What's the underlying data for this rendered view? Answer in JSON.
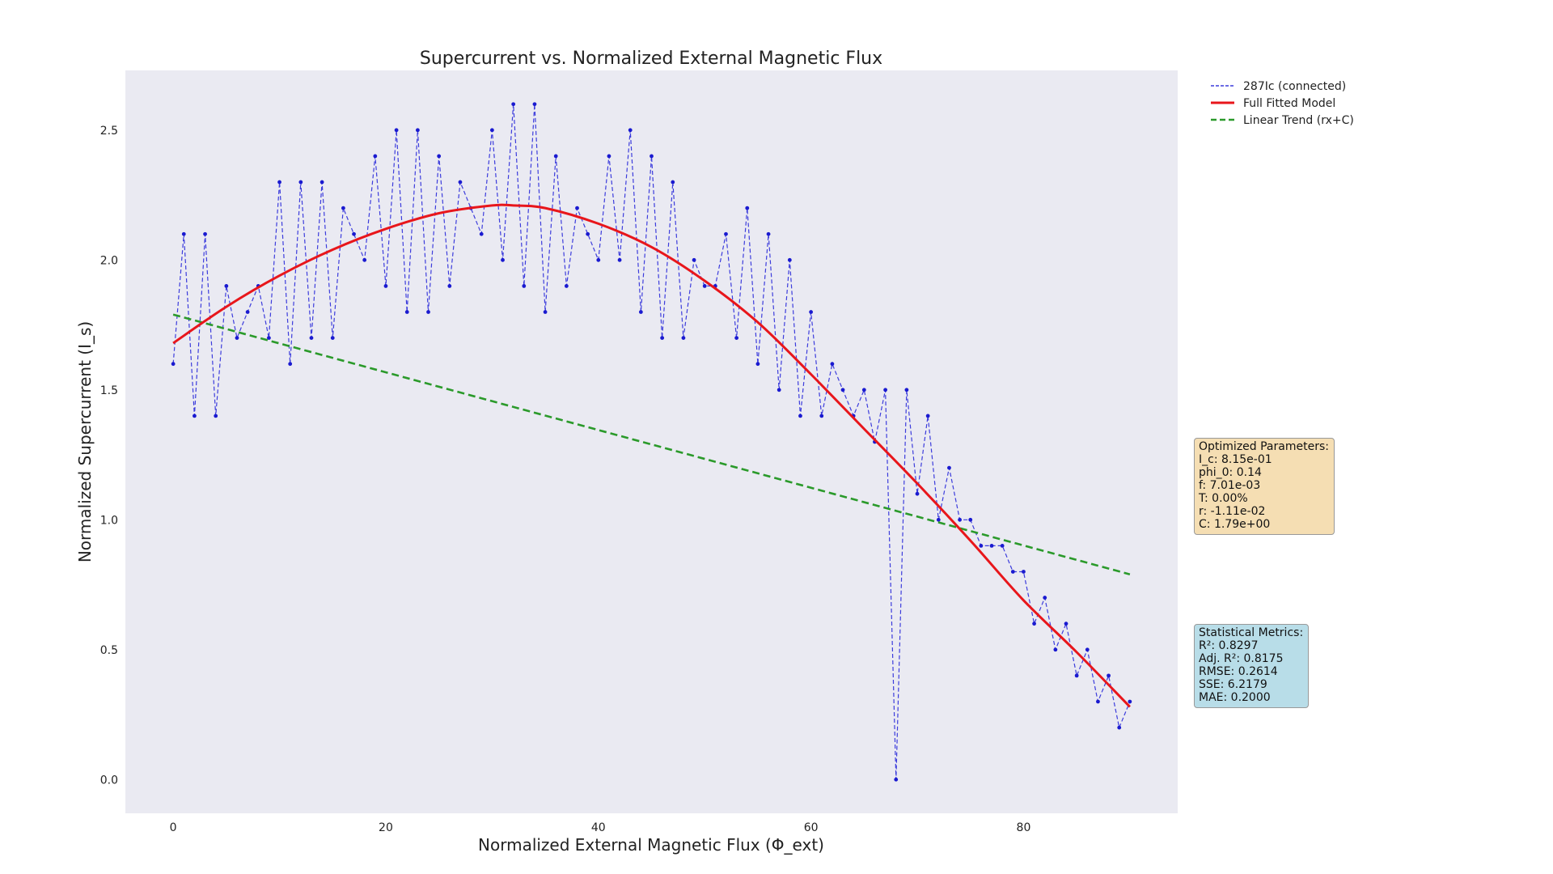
{
  "chart_data": {
    "type": "line",
    "title": "Supercurrent vs. Normalized External Magnetic Flux",
    "xlabel": "Normalized External Magnetic Flux (Φ_ext)",
    "ylabel": "Normalized Supercurrent (I_s)",
    "xlim": [
      -4.5,
      94.5
    ],
    "ylim": [
      -0.13,
      2.73
    ],
    "xticks": [
      0,
      20,
      40,
      60,
      80
    ],
    "yticks": [
      0.0,
      0.5,
      1.0,
      1.5,
      2.0,
      2.5
    ],
    "xtick_labels": [
      "0",
      "20",
      "40",
      "60",
      "80"
    ],
    "ytick_labels": [
      "0.0",
      "0.5",
      "1.0",
      "1.5",
      "2.0",
      "2.5"
    ],
    "grid": false,
    "legend_position": "outside-top-right",
    "series": [
      {
        "name": "287Ic (connected)",
        "style": "dashed-with-markers",
        "color": "#3c3cdc",
        "x": [
          0,
          1,
          2,
          3,
          4,
          5,
          6,
          7,
          8,
          9,
          10,
          11,
          12,
          13,
          14,
          15,
          16,
          17,
          18,
          19,
          20,
          21,
          22,
          23,
          24,
          25,
          26,
          27,
          28,
          29,
          30,
          31,
          32,
          33,
          34,
          35,
          36,
          37,
          38,
          39,
          40,
          41,
          42,
          43,
          44,
          45,
          46,
          47,
          48,
          49,
          50,
          51,
          52,
          53,
          54,
          55,
          56,
          57,
          58,
          59,
          60,
          61,
          62,
          63,
          64,
          65,
          66,
          67,
          68,
          69,
          70,
          71,
          72,
          73,
          74,
          75,
          76,
          77,
          78,
          79,
          80,
          81,
          82,
          83,
          84,
          85,
          86,
          87,
          88,
          89,
          90
        ],
        "y": [
          1.6,
          2.1,
          1.4,
          2.1,
          1.4,
          1.9,
          1.7,
          1.8,
          1.9,
          1.7,
          2.3,
          1.6,
          2.3,
          1.7,
          2.3,
          1.7,
          2.2,
          2.1,
          2.0,
          2.4,
          1.9,
          2.5,
          1.8,
          2.5,
          1.8,
          2.4,
          1.9,
          2.3,
          2.2,
          2.1,
          2.5,
          2.0,
          2.6,
          1.9,
          2.6,
          1.8,
          2.4,
          1.9,
          2.2,
          2.1,
          2.0,
          2.4,
          2.0,
          2.5,
          1.8,
          2.4,
          1.7,
          2.3,
          1.7,
          2.0,
          1.9,
          1.9,
          2.1,
          1.7,
          2.2,
          1.6,
          2.1,
          1.5,
          2.0,
          1.4,
          1.8,
          1.4,
          1.6,
          1.5,
          1.4,
          1.5,
          1.3,
          1.5,
          0.0,
          1.5,
          1.1,
          1.4,
          1.0,
          1.2,
          1.0,
          1.0,
          0.9,
          0.9,
          0.9,
          0.8,
          0.8,
          0.6,
          0.7,
          0.5,
          0.6,
          0.4,
          0.5,
          0.3,
          0.4,
          0.2,
          0.3
        ]
      },
      {
        "name": "Full Fitted Model",
        "style": "solid",
        "color": "#e8161b",
        "x": [
          0,
          5,
          10,
          15,
          20,
          25,
          30,
          32,
          35,
          40,
          45,
          50,
          55,
          60,
          65,
          70,
          75,
          80,
          85,
          90
        ],
        "y": [
          1.68,
          1.82,
          1.94,
          2.04,
          2.12,
          2.18,
          2.21,
          2.21,
          2.2,
          2.14,
          2.05,
          1.92,
          1.76,
          1.56,
          1.35,
          1.14,
          0.92,
          0.69,
          0.49,
          0.28
        ]
      },
      {
        "name": "Linear Trend (rx+C)",
        "style": "dashed",
        "color": "#2b9a2b",
        "x": [
          0,
          90
        ],
        "y": [
          1.79,
          0.79
        ]
      }
    ],
    "annotations": {
      "params": {
        "heading": "Optimized Parameters:",
        "lines": [
          "I_c: 8.15e-01",
          "phi_0: 0.14",
          "f: 7.01e-03",
          "T: 0.00%",
          "r: -1.11e-02",
          "C: 1.79e+00"
        ],
        "bg_color": "#f5deb3"
      },
      "metrics": {
        "heading": "Statistical Metrics:",
        "lines": [
          "R²: 0.8297",
          "Adj. R²: 0.8175",
          "RMSE: 0.2614",
          "SSE: 6.2179",
          "MAE: 0.2000"
        ],
        "bg_color": "#b8dde8"
      }
    },
    "plot_background": "#eaeaf2"
  }
}
